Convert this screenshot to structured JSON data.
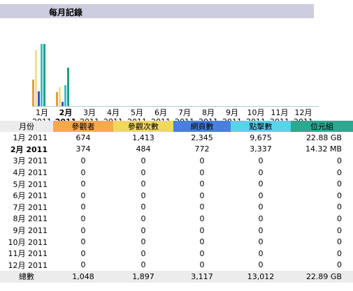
{
  "title": "每月記錄",
  "chart_data": {
    "type": "bar",
    "categories": [
      "1月 2011",
      "2月 2011",
      "3月 2011",
      "4月 2011",
      "5月 2011",
      "6月 2011",
      "7月 2011",
      "8月 2011",
      "9月 2011",
      "10月 2011",
      "11月 2011",
      "12月 2011"
    ],
    "series": [
      {
        "name": "參觀者",
        "color": "#e0a040",
        "values": [
          674,
          374,
          0,
          0,
          0,
          0,
          0,
          0,
          0,
          0,
          0,
          0
        ]
      },
      {
        "name": "參觀次數",
        "color": "#f0e090",
        "values": [
          1413,
          484,
          0,
          0,
          0,
          0,
          0,
          0,
          0,
          0,
          0,
          0
        ]
      },
      {
        "name": "網頁數",
        "color": "#3050d0",
        "values": [
          2345,
          772,
          0,
          0,
          0,
          0,
          0,
          0,
          0,
          0,
          0,
          0
        ]
      },
      {
        "name": "點擊數",
        "color": "#40c0c8",
        "values": [
          9675,
          3337,
          0,
          0,
          0,
          0,
          0,
          0,
          0,
          0,
          0,
          0
        ]
      },
      {
        "name": "位元組",
        "color": "#20a080",
        "values": [
          22.88,
          14.32,
          0,
          0,
          0,
          0,
          0,
          0,
          0,
          0,
          0,
          0
        ]
      }
    ],
    "ylim": [
      0,
      10000
    ],
    "xlabel": "",
    "ylabel": "",
    "grid": false
  },
  "x_labels": [
    {
      "month": "1月",
      "year": "2011",
      "bold": false
    },
    {
      "month": "2月",
      "year": "2011",
      "bold": true
    },
    {
      "month": "3月",
      "year": "2011",
      "bold": false
    },
    {
      "month": "4月",
      "year": "2011",
      "bold": false
    },
    {
      "month": "5月",
      "year": "2011",
      "bold": false
    },
    {
      "month": "6月",
      "year": "2011",
      "bold": false
    },
    {
      "month": "7月",
      "year": "2011",
      "bold": false
    },
    {
      "month": "8月",
      "year": "2011",
      "bold": false
    },
    {
      "month": "9月",
      "year": "2011",
      "bold": false
    },
    {
      "month": "10月",
      "year": "2011",
      "bold": false
    },
    {
      "month": "11月",
      "year": "2011",
      "bold": false
    },
    {
      "month": "12月",
      "year": "2011",
      "bold": false
    }
  ],
  "table": {
    "headers": [
      "月份",
      "參觀者",
      "參觀次數",
      "網頁數",
      "點擊數",
      "位元組"
    ],
    "rows": [
      {
        "month": "1月 2011",
        "visitors": "674",
        "visits": "1,413",
        "pages": "2,345",
        "hits": "9,675",
        "bandwidth": "22.88 GB",
        "bold": false
      },
      {
        "month": "2月 2011",
        "visitors": "374",
        "visits": "484",
        "pages": "772",
        "hits": "3,337",
        "bandwidth": "14.32 MB",
        "bold": true
      },
      {
        "month": "3月 2011",
        "visitors": "0",
        "visits": "0",
        "pages": "0",
        "hits": "0",
        "bandwidth": "0",
        "bold": false
      },
      {
        "month": "4月 2011",
        "visitors": "0",
        "visits": "0",
        "pages": "0",
        "hits": "0",
        "bandwidth": "0",
        "bold": false
      },
      {
        "month": "5月 2011",
        "visitors": "0",
        "visits": "0",
        "pages": "0",
        "hits": "0",
        "bandwidth": "0",
        "bold": false
      },
      {
        "month": "6月 2011",
        "visitors": "0",
        "visits": "0",
        "pages": "0",
        "hits": "0",
        "bandwidth": "0",
        "bold": false
      },
      {
        "month": "7月 2011",
        "visitors": "0",
        "visits": "0",
        "pages": "0",
        "hits": "0",
        "bandwidth": "0",
        "bold": false
      },
      {
        "month": "8月 2011",
        "visitors": "0",
        "visits": "0",
        "pages": "0",
        "hits": "0",
        "bandwidth": "0",
        "bold": false
      },
      {
        "month": "9月 2011",
        "visitors": "0",
        "visits": "0",
        "pages": "0",
        "hits": "0",
        "bandwidth": "0",
        "bold": false
      },
      {
        "month": "10月 2011",
        "visitors": "0",
        "visits": "0",
        "pages": "0",
        "hits": "0",
        "bandwidth": "0",
        "bold": false
      },
      {
        "month": "11月 2011",
        "visitors": "0",
        "visits": "0",
        "pages": "0",
        "hits": "0",
        "bandwidth": "0",
        "bold": false
      },
      {
        "month": "12月 2011",
        "visitors": "0",
        "visits": "0",
        "pages": "0",
        "hits": "0",
        "bandwidth": "0",
        "bold": false
      }
    ],
    "total": {
      "month": "總數",
      "visitors": "1,048",
      "visits": "1,897",
      "pages": "3,117",
      "hits": "13,012",
      "bandwidth": "22.89 GB"
    }
  }
}
